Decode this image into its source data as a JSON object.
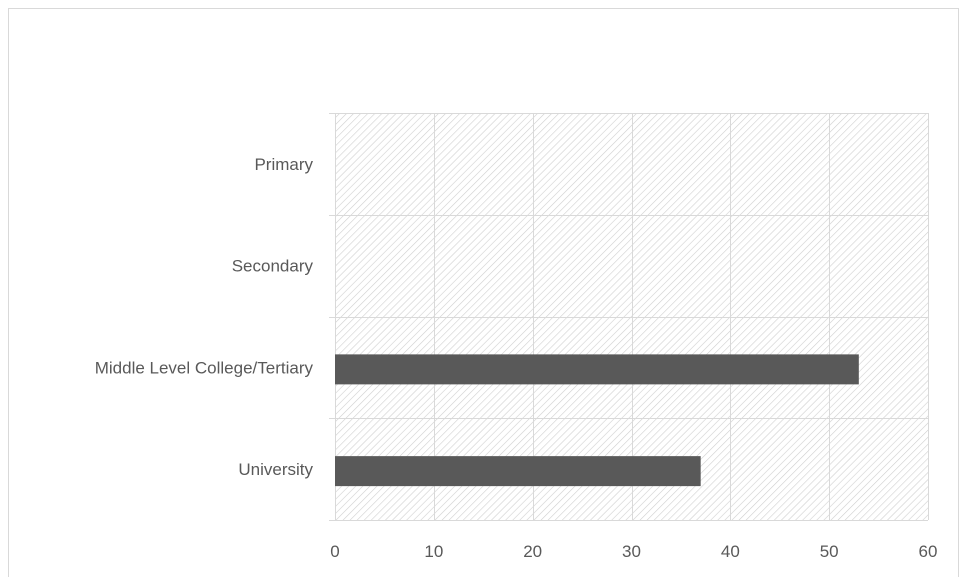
{
  "chart_data": {
    "type": "bar",
    "orientation": "horizontal",
    "title": "",
    "xlabel": "",
    "ylabel": "",
    "categories": [
      "Primary",
      "Secondary",
      "Middle Level College/Tertiary",
      "University"
    ],
    "values": [
      0,
      0,
      53,
      37
    ],
    "xlim": [
      0,
      60
    ],
    "x_ticks": [
      0,
      10,
      20,
      30,
      40,
      50,
      60
    ],
    "grid": true,
    "legend": "none",
    "colors": {
      "bar": "#595959",
      "grid": "#d9d9d9",
      "hatch": "#d0d0d0",
      "label": "#595959"
    }
  }
}
